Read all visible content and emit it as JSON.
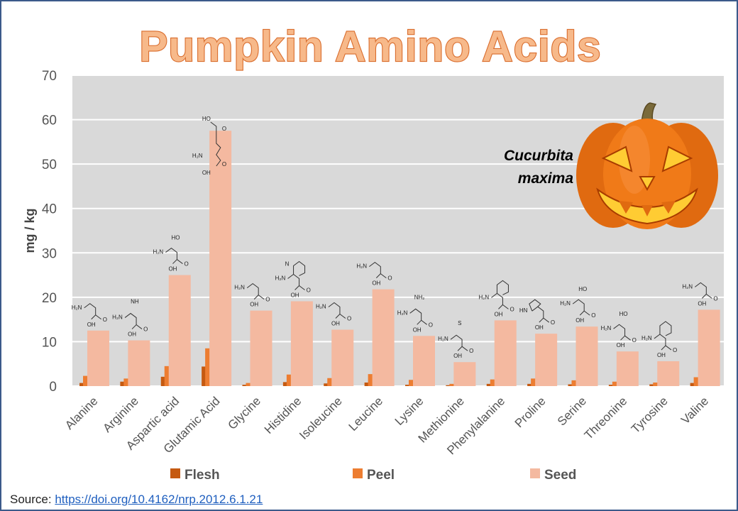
{
  "chart_data": {
    "type": "bar",
    "title": "Pumpkin Amino Acids",
    "ylabel": "mg / kg",
    "ylim": [
      0,
      70
    ],
    "yticks": [
      0,
      10,
      20,
      30,
      40,
      50,
      60,
      70
    ],
    "grid": true,
    "legend_position": "bottom",
    "categories": [
      "Alanine",
      "Arginine",
      "Aspartic acid",
      "Glutamic Acid",
      "Glycine",
      "Histidine",
      "Isoleucine",
      "Leucine",
      "Lysine",
      "Methionine",
      "Phenylalanine",
      "Proline",
      "Serine",
      "Threonine",
      "Tyrosine",
      "Valine"
    ],
    "series": [
      {
        "name": "Flesh",
        "color": "#c55a11",
        "values": [
          0.7,
          1.0,
          2.1,
          4.4,
          0.3,
          0.9,
          0.6,
          0.8,
          0.3,
          0.2,
          0.5,
          0.5,
          0.4,
          0.3,
          0.4,
          0.7
        ]
      },
      {
        "name": "Peel",
        "color": "#ed7d31",
        "values": [
          2.3,
          1.7,
          4.5,
          8.5,
          0.7,
          2.6,
          1.8,
          2.7,
          1.4,
          0.5,
          1.5,
          1.7,
          1.3,
          1.0,
          0.8,
          2.0
        ]
      },
      {
        "name": "Seed",
        "color": "#f4b9a0",
        "values": [
          12.5,
          10.3,
          25.0,
          57.5,
          17.0,
          19.1,
          12.7,
          21.8,
          11.3,
          5.4,
          14.8,
          11.8,
          13.4,
          7.8,
          5.6,
          17.2
        ]
      }
    ]
  },
  "annotation": {
    "line1": "Cucurbita",
    "line2": "maxima"
  },
  "source": {
    "label": "Source:",
    "link": "https://doi.org/10.4162/nrp.2012.6.1.21"
  },
  "molecule_labels": [
    "H₂N",
    "OH",
    "O",
    "HN",
    "NH",
    "NH₂",
    "S",
    "HO",
    "N"
  ],
  "icons": {
    "pumpkin": "jack-o-lantern-icon"
  }
}
